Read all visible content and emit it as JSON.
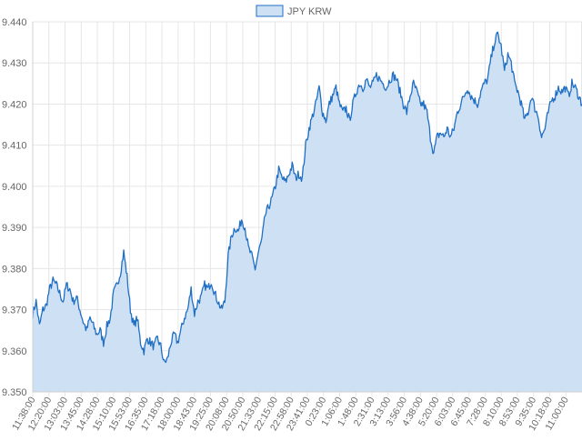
{
  "chart_data": {
    "type": "area",
    "title": "",
    "xlabel": "",
    "ylabel": "",
    "legend": {
      "position": "top-center",
      "label": "JPY KRW"
    },
    "grid": true,
    "colors": {
      "line": "#1f6fc4",
      "fill": "#cde0f4",
      "grid": "#e6e6e6",
      "text": "#666666"
    },
    "ylim": [
      9.35,
      9.44
    ],
    "yticks": [
      "9.350",
      "9.360",
      "9.370",
      "9.380",
      "9.390",
      "9.400",
      "9.410",
      "9.420",
      "9.430",
      "9.440"
    ],
    "xticks": [
      "11:38:00",
      "12:20:00",
      "13:03:00",
      "13:45:00",
      "14:28:00",
      "15:10:00",
      "15:53:00",
      "16:35:00",
      "17:18:00",
      "18:00:00",
      "18:43:00",
      "19:25:00",
      "20:08:00",
      "20:50:00",
      "21:33:00",
      "22:15:00",
      "22:58:00",
      "23:41:00",
      "0:23:00",
      "1:06:00",
      "1:48:00",
      "2:31:00",
      "3:13:00",
      "3:56:00",
      "4:38:00",
      "5:20:00",
      "6:03:00",
      "6:45:00",
      "7:28:00",
      "8:10:00",
      "8:53:00",
      "9:35:00",
      "10:18:00",
      "11:00:00"
    ],
    "series": [
      {
        "name": "JPY KRW",
        "anchors": [
          [
            0,
            9.369
          ],
          [
            1,
            9.372
          ],
          [
            2,
            9.366
          ],
          [
            3,
            9.37
          ],
          [
            4,
            9.371
          ],
          [
            5,
            9.375
          ],
          [
            6,
            9.377
          ],
          [
            7,
            9.376
          ],
          [
            8,
            9.374
          ],
          [
            9,
            9.372
          ],
          [
            10,
            9.376
          ],
          [
            11,
            9.375
          ],
          [
            12,
            9.372
          ],
          [
            13,
            9.373
          ],
          [
            14,
            9.37
          ],
          [
            15,
            9.367
          ],
          [
            16,
            9.365
          ],
          [
            17,
            9.368
          ],
          [
            18,
            9.366
          ],
          [
            19,
            9.364
          ],
          [
            20,
            9.365
          ],
          [
            21,
            9.362
          ],
          [
            22,
            9.366
          ],
          [
            23,
            9.368
          ],
          [
            24,
            9.374
          ],
          [
            25,
            9.376
          ],
          [
            26,
            9.379
          ],
          [
            27,
            9.384
          ],
          [
            28,
            9.378
          ],
          [
            29,
            9.37
          ],
          [
            30,
            9.366
          ],
          [
            31,
            9.368
          ],
          [
            32,
            9.362
          ],
          [
            33,
            9.36
          ],
          [
            34,
            9.363
          ],
          [
            35,
            9.362
          ],
          [
            36,
            9.361
          ],
          [
            37,
            9.363
          ],
          [
            38,
            9.361
          ],
          [
            39,
            9.357
          ],
          [
            40,
            9.358
          ],
          [
            41,
            9.362
          ],
          [
            42,
            9.364
          ],
          [
            43,
            9.362
          ],
          [
            44,
            9.365
          ],
          [
            45,
            9.368
          ],
          [
            46,
            9.37
          ],
          [
            47,
            9.375
          ],
          [
            48,
            9.369
          ],
          [
            49,
            9.372
          ],
          [
            50,
            9.373
          ],
          [
            51,
            9.376
          ],
          [
            52,
            9.375
          ],
          [
            53,
            9.377
          ],
          [
            54,
            9.374
          ],
          [
            55,
            9.372
          ],
          [
            56,
            9.37
          ],
          [
            57,
            9.372
          ],
          [
            58,
            9.383
          ],
          [
            59,
            9.388
          ],
          [
            60,
            9.39
          ],
          [
            61,
            9.389
          ],
          [
            62,
            9.392
          ],
          [
            63,
            9.39
          ],
          [
            64,
            9.385
          ],
          [
            65,
            9.383
          ],
          [
            66,
            9.38
          ],
          [
            67,
            9.384
          ],
          [
            68,
            9.387
          ],
          [
            69,
            9.393
          ],
          [
            70,
            9.395
          ],
          [
            71,
            9.397
          ],
          [
            72,
            9.4
          ],
          [
            73,
            9.404
          ],
          [
            74,
            9.402
          ],
          [
            75,
            9.401
          ],
          [
            76,
            9.403
          ],
          [
            77,
            9.405
          ],
          [
            78,
            9.402
          ],
          [
            79,
            9.403
          ],
          [
            80,
            9.402
          ],
          [
            81,
            9.41
          ],
          [
            82,
            9.414
          ],
          [
            83,
            9.417
          ],
          [
            84,
            9.42
          ],
          [
            85,
            9.424
          ],
          [
            86,
            9.418
          ],
          [
            87,
            9.416
          ],
          [
            88,
            9.42
          ],
          [
            89,
            9.422
          ],
          [
            90,
            9.424
          ],
          [
            91,
            9.42
          ],
          [
            92,
            9.418
          ],
          [
            93,
            9.419
          ],
          [
            94,
            9.416
          ],
          [
            95,
            9.42
          ],
          [
            96,
            9.423
          ],
          [
            97,
            9.425
          ],
          [
            98,
            9.424
          ],
          [
            99,
            9.426
          ],
          [
            100,
            9.424
          ],
          [
            101,
            9.425
          ],
          [
            102,
            9.427
          ],
          [
            103,
            9.426
          ],
          [
            104,
            9.425
          ],
          [
            105,
            9.424
          ],
          [
            106,
            9.426
          ],
          [
            107,
            9.427
          ],
          [
            108,
            9.426
          ],
          [
            109,
            9.423
          ],
          [
            110,
            9.42
          ],
          [
            111,
            9.418
          ],
          [
            112,
            9.422
          ],
          [
            113,
            9.425
          ],
          [
            114,
            9.423
          ],
          [
            115,
            9.42
          ],
          [
            116,
            9.42
          ],
          [
            117,
            9.418
          ],
          [
            118,
            9.412
          ],
          [
            119,
            9.408
          ],
          [
            120,
            9.412
          ],
          [
            121,
            9.413
          ],
          [
            122,
            9.412
          ],
          [
            123,
            9.414
          ],
          [
            124,
            9.412
          ],
          [
            125,
            9.414
          ],
          [
            126,
            9.418
          ],
          [
            127,
            9.42
          ],
          [
            128,
            9.422
          ],
          [
            129,
            9.424
          ],
          [
            130,
            9.422
          ],
          [
            131,
            9.421
          ],
          [
            132,
            9.42
          ],
          [
            133,
            9.423
          ],
          [
            134,
            9.425
          ],
          [
            135,
            9.426
          ],
          [
            136,
            9.431
          ],
          [
            137,
            9.435
          ],
          [
            138,
            9.437
          ],
          [
            139,
            9.434
          ],
          [
            140,
            9.428
          ],
          [
            141,
            9.432
          ],
          [
            142,
            9.43
          ],
          [
            143,
            9.425
          ],
          [
            144,
            9.423
          ],
          [
            145,
            9.42
          ],
          [
            146,
            9.416
          ],
          [
            147,
            9.418
          ],
          [
            148,
            9.422
          ],
          [
            149,
            9.419
          ],
          [
            150,
            9.417
          ],
          [
            151,
            9.412
          ],
          [
            152,
            9.414
          ],
          [
            153,
            9.418
          ],
          [
            154,
            9.421
          ],
          [
            155,
            9.422
          ],
          [
            156,
            9.424
          ],
          [
            157,
            9.423
          ],
          [
            158,
            9.424
          ],
          [
            159,
            9.422
          ],
          [
            160,
            9.425
          ],
          [
            161,
            9.424
          ],
          [
            162,
            9.422
          ],
          [
            163,
            9.42
          ]
        ]
      }
    ]
  }
}
